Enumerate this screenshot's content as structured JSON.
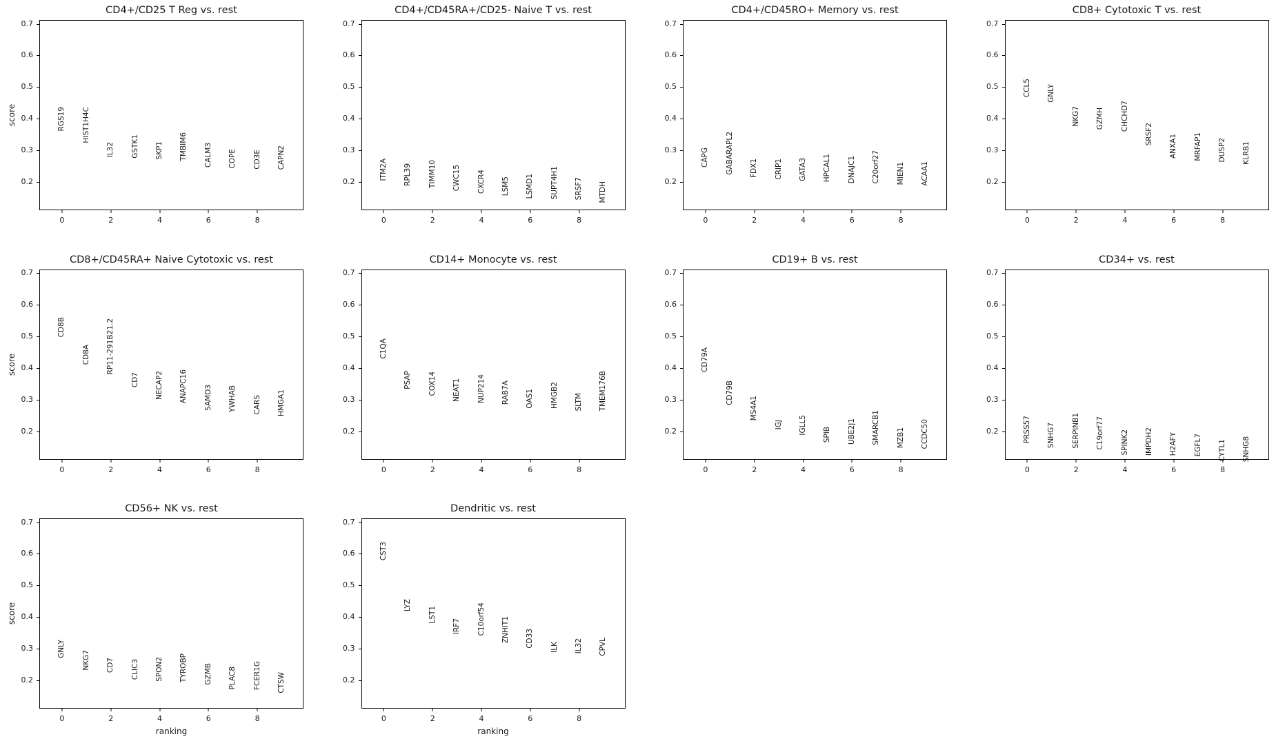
{
  "figure": {
    "background": "#ffffff",
    "text_color": "#1a1a1a",
    "spine_color": "#000000",
    "ylabel": "score",
    "xlabel": "ranking"
  },
  "chart_data": [
    {
      "type": "scatter",
      "title": "CD4+/CD25 T Reg vs. rest",
      "xlabel": "",
      "ylabel": "score",
      "label_style": "vertical-text",
      "grid": false,
      "legend": "none",
      "xlim": [
        -0.93,
        9.89
      ],
      "ylim": [
        0.111,
        0.712
      ],
      "xticks": [
        0,
        2,
        4,
        6,
        8
      ],
      "yticks": [
        0.2,
        0.3,
        0.4,
        0.5,
        0.6,
        0.7
      ],
      "x": [
        0,
        1,
        2,
        3,
        4,
        5,
        6,
        7,
        8,
        9
      ],
      "categories": [
        "RGS19",
        "HIST1H4C",
        "IL32",
        "GSTK1",
        "SKP1",
        "TMBIM6",
        "CALM3",
        "COPE",
        "CD3E",
        "CAPN2"
      ],
      "values": [
        0.361,
        0.322,
        0.277,
        0.275,
        0.27,
        0.266,
        0.245,
        0.242,
        0.24,
        0.238
      ]
    },
    {
      "type": "scatter",
      "title": "CD4+/CD45RA+/CD25- Naive T vs. rest",
      "xlabel": "",
      "ylabel": "",
      "label_style": "vertical-text",
      "grid": false,
      "legend": "none",
      "xlim": [
        -0.93,
        9.89
      ],
      "ylim": [
        0.111,
        0.712
      ],
      "xticks": [
        0,
        2,
        4,
        6,
        8
      ],
      "yticks": [
        0.2,
        0.3,
        0.4,
        0.5,
        0.6,
        0.7
      ],
      "x": [
        0,
        1,
        2,
        3,
        4,
        5,
        6,
        7,
        8,
        9
      ],
      "categories": [
        "ITM2A",
        "RPL39",
        "TIMM10",
        "CWC15",
        "CXCR4",
        "LSM5",
        "LSMD1",
        "SUPT4H1",
        "SRSF7",
        "MTDH"
      ],
      "values": [
        0.204,
        0.188,
        0.18,
        0.172,
        0.163,
        0.157,
        0.148,
        0.146,
        0.142,
        0.135
      ]
    },
    {
      "type": "scatter",
      "title": "CD4+/CD45RO+ Memory vs. rest",
      "xlabel": "",
      "ylabel": "",
      "label_style": "vertical-text",
      "grid": false,
      "legend": "none",
      "xlim": [
        -0.93,
        9.89
      ],
      "ylim": [
        0.111,
        0.712
      ],
      "xticks": [
        0,
        2,
        4,
        6,
        8
      ],
      "yticks": [
        0.2,
        0.3,
        0.4,
        0.5,
        0.6,
        0.7
      ],
      "x": [
        0,
        1,
        2,
        3,
        4,
        5,
        6,
        7,
        8,
        9
      ],
      "categories": [
        "CAPG",
        "GABARAPL2",
        "FDX1",
        "CRIP1",
        "GATA3",
        "HPCAL1",
        "DNAJC1",
        "C20orf27",
        "MIEN1",
        "ACAA1"
      ],
      "values": [
        0.245,
        0.223,
        0.213,
        0.207,
        0.202,
        0.2,
        0.196,
        0.195,
        0.191,
        0.189
      ]
    },
    {
      "type": "scatter",
      "title": "CD8+ Cytotoxic T vs. rest",
      "xlabel": "",
      "ylabel": "",
      "label_style": "vertical-text",
      "grid": false,
      "legend": "none",
      "xlim": [
        -0.93,
        9.89
      ],
      "ylim": [
        0.111,
        0.712
      ],
      "xticks": [
        0,
        2,
        4,
        6,
        8
      ],
      "yticks": [
        0.2,
        0.3,
        0.4,
        0.5,
        0.6,
        0.7
      ],
      "x": [
        0,
        1,
        2,
        3,
        4,
        5,
        6,
        7,
        8,
        9
      ],
      "categories": [
        "CCL5",
        "GNLY",
        "NKG7",
        "GZMH",
        "CHCHD7",
        "SRSF2",
        "ANXA1",
        "MRFAP1",
        "DUSP2",
        "KLRB1"
      ],
      "values": [
        0.468,
        0.45,
        0.375,
        0.365,
        0.359,
        0.316,
        0.274,
        0.267,
        0.262,
        0.254
      ]
    },
    {
      "type": "scatter",
      "title": "CD8+/CD45RA+ Naive Cytotoxic vs. rest",
      "xlabel": "",
      "ylabel": "score",
      "label_style": "vertical-text",
      "grid": false,
      "legend": "none",
      "xlim": [
        -0.93,
        9.89
      ],
      "ylim": [
        0.111,
        0.712
      ],
      "xticks": [
        0,
        2,
        4,
        6,
        8
      ],
      "yticks": [
        0.2,
        0.3,
        0.4,
        0.5,
        0.6,
        0.7
      ],
      "x": [
        0,
        1,
        2,
        3,
        4,
        5,
        6,
        7,
        8,
        9
      ],
      "categories": [
        "CD8B",
        "CD8A",
        "RP11-291B21.2",
        "CD7",
        "NECAP2",
        "ANAPC16",
        "SAMD3",
        "YWHAB",
        "CARS",
        "HMGA1"
      ],
      "values": [
        0.497,
        0.409,
        0.38,
        0.338,
        0.3,
        0.289,
        0.265,
        0.26,
        0.253,
        0.248
      ]
    },
    {
      "type": "scatter",
      "title": "CD14+ Monocyte vs. rest",
      "xlabel": "",
      "ylabel": "",
      "label_style": "vertical-text",
      "grid": false,
      "legend": "none",
      "xlim": [
        -0.93,
        9.89
      ],
      "ylim": [
        0.111,
        0.712
      ],
      "xticks": [
        0,
        2,
        4,
        6,
        8
      ],
      "yticks": [
        0.2,
        0.3,
        0.4,
        0.5,
        0.6,
        0.7
      ],
      "x": [
        0,
        1,
        2,
        3,
        4,
        5,
        6,
        7,
        8,
        9
      ],
      "categories": [
        "C1QA",
        "PSAP",
        "COX14",
        "NEAT1",
        "NUP214",
        "RAB7A",
        "OAS1",
        "HMGB2",
        "SLTM",
        "TMEM176B"
      ],
      "values": [
        0.429,
        0.333,
        0.311,
        0.294,
        0.289,
        0.284,
        0.272,
        0.271,
        0.264,
        0.263
      ]
    },
    {
      "type": "scatter",
      "title": "CD19+ B vs. rest",
      "xlabel": "",
      "ylabel": "",
      "label_style": "vertical-text",
      "grid": false,
      "legend": "none",
      "xlim": [
        -0.93,
        9.89
      ],
      "ylim": [
        0.111,
        0.712
      ],
      "xticks": [
        0,
        2,
        4,
        6,
        8
      ],
      "yticks": [
        0.2,
        0.3,
        0.4,
        0.5,
        0.6,
        0.7
      ],
      "x": [
        0,
        1,
        2,
        3,
        4,
        5,
        6,
        7,
        8,
        9
      ],
      "categories": [
        "CD79A",
        "CD79B",
        "MS4A1",
        "IGJ",
        "IGLL5",
        "SPIB",
        "UBE2J1",
        "SMARCB1",
        "MZB1",
        "CCDC50"
      ],
      "values": [
        0.386,
        0.281,
        0.233,
        0.204,
        0.186,
        0.164,
        0.158,
        0.155,
        0.146,
        0.143
      ]
    },
    {
      "type": "scatter",
      "title": "CD34+ vs. rest",
      "xlabel": "",
      "ylabel": "",
      "label_style": "vertical-text",
      "grid": false,
      "legend": "none",
      "xlim": [
        -0.93,
        9.89
      ],
      "ylim": [
        0.111,
        0.712
      ],
      "xticks": [
        0,
        2,
        4,
        6,
        8
      ],
      "yticks": [
        0.2,
        0.3,
        0.4,
        0.5,
        0.6,
        0.7
      ],
      "x": [
        0,
        1,
        2,
        3,
        4,
        5,
        6,
        7,
        8,
        9
      ],
      "categories": [
        "PRSS57",
        "SNHG7",
        "SERPINB1",
        "C19orf77",
        "SPINK2",
        "IMPDH2",
        "H2AFY",
        "EGFL7",
        "CYTL1",
        "SNHG8"
      ],
      "values": [
        0.162,
        0.147,
        0.145,
        0.142,
        0.125,
        0.123,
        0.122,
        0.119,
        0.105,
        0.102
      ]
    },
    {
      "type": "scatter",
      "title": "CD56+ NK vs. rest",
      "xlabel": "ranking",
      "ylabel": "score",
      "label_style": "vertical-text",
      "grid": false,
      "legend": "none",
      "xlim": [
        -0.93,
        9.89
      ],
      "ylim": [
        0.111,
        0.712
      ],
      "xticks": [
        0,
        2,
        4,
        6,
        8
      ],
      "yticks": [
        0.2,
        0.3,
        0.4,
        0.5,
        0.6,
        0.7
      ],
      "x": [
        0,
        1,
        2,
        3,
        4,
        5,
        6,
        7,
        8,
        9
      ],
      "categories": [
        "GNLY",
        "NKG7",
        "CD7",
        "CLIC3",
        "SPON2",
        "TYROBP",
        "GZMB",
        "PLAC8",
        "FCER1G",
        "CTSW"
      ],
      "values": [
        0.27,
        0.232,
        0.223,
        0.201,
        0.197,
        0.194,
        0.187,
        0.172,
        0.169,
        0.159
      ]
    },
    {
      "type": "scatter",
      "title": "Dendritic vs. rest",
      "xlabel": "ranking",
      "ylabel": "",
      "label_style": "vertical-text",
      "grid": false,
      "legend": "none",
      "xlim": [
        -0.93,
        9.89
      ],
      "ylim": [
        0.111,
        0.712
      ],
      "xticks": [
        0,
        2,
        4,
        6,
        8
      ],
      "yticks": [
        0.2,
        0.3,
        0.4,
        0.5,
        0.6,
        0.7
      ],
      "x": [
        0,
        1,
        2,
        3,
        4,
        5,
        6,
        7,
        8,
        9
      ],
      "categories": [
        "CST3",
        "LYZ",
        "LST1",
        "IRF7",
        "C10orf54",
        "ZNHIT1",
        "CD33",
        "ILK",
        "IL32",
        "CPVL"
      ],
      "values": [
        0.578,
        0.418,
        0.379,
        0.346,
        0.341,
        0.317,
        0.302,
        0.288,
        0.284,
        0.277
      ]
    }
  ]
}
